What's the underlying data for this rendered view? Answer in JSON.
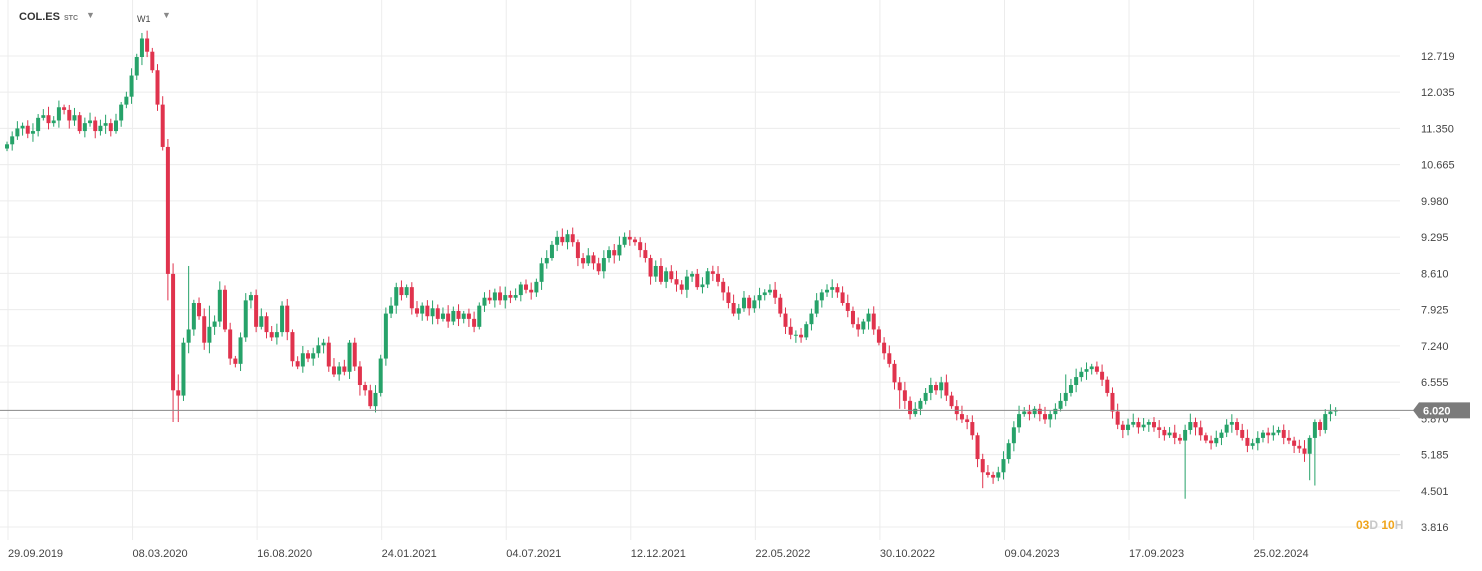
{
  "header": {
    "symbol": "COL.ES",
    "symbol_type": "STC",
    "interval": "W1",
    "caret": "▼"
  },
  "countdown": {
    "d_value": "03",
    "d_unit": "D",
    "h_value": "10",
    "h_unit": "H"
  },
  "colors": {
    "up": "#26a269",
    "down": "#e0334d",
    "grid": "#ececec",
    "price_line": "#888888",
    "price_tag": "#7b7b7b"
  },
  "chart_data": {
    "type": "candlestick",
    "title": "",
    "xlabel": "",
    "ylabel": "",
    "y_ticks": [
      "12.719",
      "12.035",
      "11.350",
      "10.665",
      "9.980",
      "9.295",
      "8.610",
      "7.925",
      "7.240",
      "6.555",
      "5.870",
      "5.185",
      "4.501",
      "3.816"
    ],
    "x_ticks": [
      "29.09.2019",
      "08.03.2020",
      "16.08.2020",
      "24.01.2021",
      "04.07.2021",
      "12.12.2021",
      "22.05.2022",
      "30.10.2022",
      "09.04.2023",
      "17.09.2023",
      "25.02.2024"
    ],
    "ylim": [
      3.6,
      13.3
    ],
    "last_price": 6.02,
    "last_price_label": "6.020",
    "grid": true,
    "weekly_close": [
      11.05,
      11.2,
      11.35,
      11.4,
      11.25,
      11.3,
      11.55,
      11.6,
      11.45,
      11.5,
      11.75,
      11.7,
      11.5,
      11.6,
      11.3,
      11.45,
      11.5,
      11.3,
      11.4,
      11.45,
      11.3,
      11.5,
      11.8,
      11.95,
      12.35,
      12.7,
      13.05,
      12.8,
      12.45,
      11.8,
      11.0,
      8.6,
      6.4,
      6.3,
      7.3,
      7.55,
      8.05,
      7.8,
      7.3,
      7.6,
      7.7,
      8.3,
      7.55,
      7.0,
      6.9,
      7.4,
      8.1,
      8.2,
      7.6,
      7.8,
      7.5,
      7.4,
      7.5,
      8.0,
      7.5,
      6.95,
      6.85,
      7.1,
      7.0,
      7.1,
      7.25,
      7.3,
      6.85,
      6.7,
      6.85,
      6.75,
      7.3,
      6.85,
      6.5,
      6.4,
      6.1,
      6.35,
      7.0,
      7.85,
      8.0,
      8.35,
      8.2,
      8.35,
      7.95,
      7.85,
      8.0,
      7.8,
      7.95,
      7.75,
      7.85,
      7.7,
      7.9,
      7.75,
      7.85,
      7.75,
      7.6,
      8.0,
      8.15,
      8.1,
      8.25,
      8.1,
      8.2,
      8.15,
      8.2,
      8.4,
      8.3,
      8.25,
      8.45,
      8.8,
      8.9,
      9.15,
      9.3,
      9.2,
      9.35,
      9.2,
      8.9,
      8.8,
      8.95,
      8.8,
      8.65,
      8.9,
      9.05,
      8.95,
      9.15,
      9.3,
      9.25,
      9.2,
      9.05,
      8.9,
      8.55,
      8.75,
      8.45,
      8.65,
      8.5,
      8.4,
      8.3,
      8.55,
      8.6,
      8.35,
      8.4,
      8.65,
      8.6,
      8.45,
      8.25,
      8.05,
      7.85,
      7.95,
      8.15,
      7.95,
      8.1,
      8.2,
      8.25,
      8.3,
      8.15,
      7.85,
      7.6,
      7.45,
      7.45,
      7.4,
      7.65,
      7.85,
      8.1,
      8.25,
      8.3,
      8.35,
      8.25,
      8.05,
      7.9,
      7.65,
      7.55,
      7.7,
      7.85,
      7.55,
      7.3,
      7.1,
      6.9,
      6.55,
      6.4,
      6.2,
      5.95,
      6.05,
      6.2,
      6.35,
      6.5,
      6.4,
      6.55,
      6.3,
      6.1,
      5.95,
      5.85,
      5.8,
      5.55,
      5.1,
      4.85,
      4.8,
      4.75,
      4.85,
      5.1,
      5.4,
      5.7,
      5.95,
      6.0,
      5.95,
      6.05,
      5.95,
      5.85,
      5.95,
      6.05,
      6.2,
      6.35,
      6.5,
      6.65,
      6.75,
      6.8,
      6.85,
      6.75,
      6.6,
      6.35,
      6.0,
      5.75,
      5.65,
      5.75,
      5.8,
      5.7,
      5.75,
      5.8,
      5.7,
      5.65,
      5.55,
      5.6,
      5.5,
      5.45,
      5.65,
      5.8,
      5.7,
      5.55,
      5.45,
      5.4,
      5.5,
      5.6,
      5.75,
      5.8,
      5.65,
      5.5,
      5.35,
      5.4,
      5.5,
      5.6,
      5.55,
      5.6,
      5.65,
      5.5,
      5.45,
      5.35,
      5.3,
      5.2,
      5.5,
      5.8,
      5.65,
      5.95,
      6.0,
      6.02
    ]
  }
}
